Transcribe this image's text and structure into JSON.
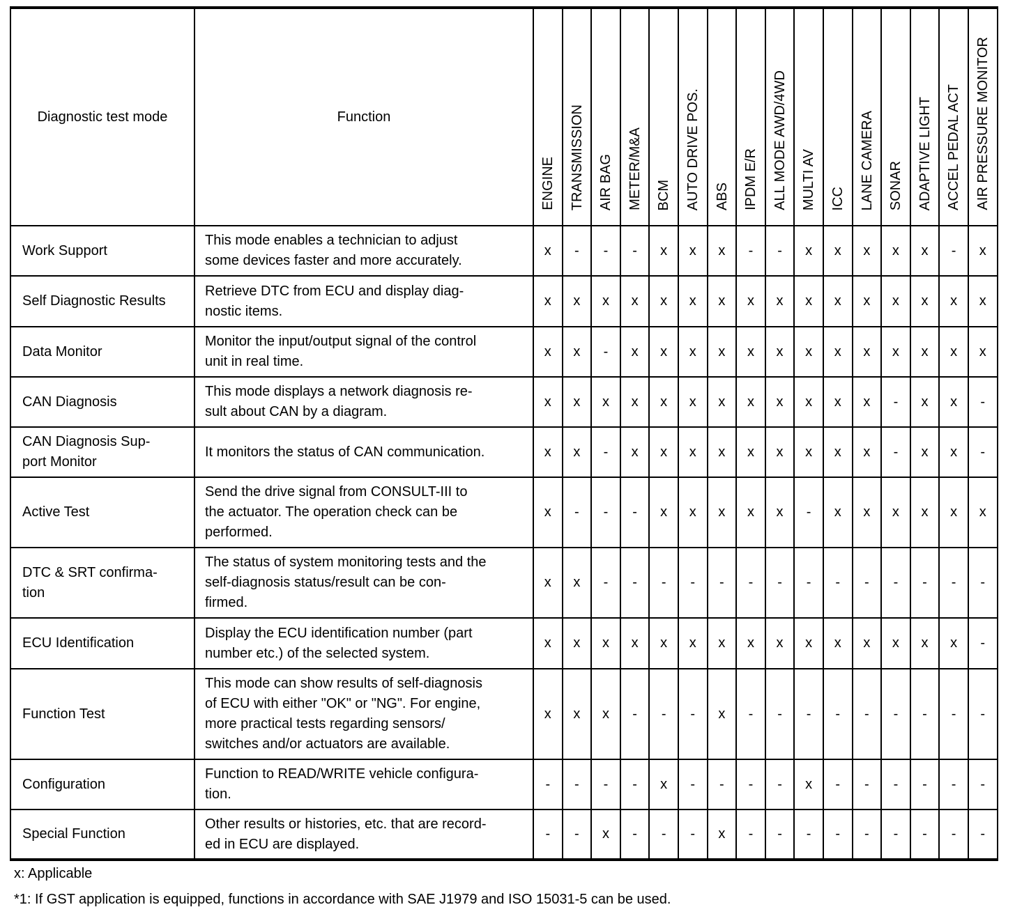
{
  "header": {
    "mode_label": "Diagnostic test mode",
    "function_label": "Function",
    "systems": [
      "ENGINE",
      "TRANSMISSION",
      "AIR BAG",
      "METER/M&A",
      "BCM",
      "AUTO DRIVE POS.",
      "ABS",
      "IPDM E/R",
      "ALL MODE AWD/4WD",
      "MULTI AV",
      "ICC",
      "LANE CAMERA",
      "SONAR",
      "ADAPTIVE LIGHT",
      "ACCEL PEDAL ACT",
      "AIR PRESSURE MONITOR"
    ]
  },
  "rows": [
    {
      "mode": "Work Support",
      "function": "This mode enables a technician to adjust\nsome devices faster and more accurately.",
      "marks": [
        "x",
        "-",
        "-",
        "-",
        "x",
        "x",
        "x",
        "-",
        "-",
        "x",
        "x",
        "x",
        "x",
        "x",
        "-",
        "x"
      ]
    },
    {
      "mode": "Self Diagnostic Results",
      "function": "Retrieve DTC from ECU and display diag-\nnostic items.",
      "marks": [
        "x",
        "x",
        "x",
        "x",
        "x",
        "x",
        "x",
        "x",
        "x",
        "x",
        "x",
        "x",
        "x",
        "x",
        "x",
        "x"
      ]
    },
    {
      "mode": "Data Monitor",
      "function": "Monitor the input/output signal of the control\nunit in real time.",
      "marks": [
        "x",
        "x",
        "-",
        "x",
        "x",
        "x",
        "x",
        "x",
        "x",
        "x",
        "x",
        "x",
        "x",
        "x",
        "x",
        "x"
      ]
    },
    {
      "mode": "CAN Diagnosis",
      "function": "This mode displays a network diagnosis re-\nsult about CAN by a diagram.",
      "marks": [
        "x",
        "x",
        "x",
        "x",
        "x",
        "x",
        "x",
        "x",
        "x",
        "x",
        "x",
        "x",
        "-",
        "x",
        "x",
        "-"
      ]
    },
    {
      "mode": "CAN Diagnosis Sup-\nport Monitor",
      "function": "It monitors the status of CAN communication.",
      "marks": [
        "x",
        "x",
        "-",
        "x",
        "x",
        "x",
        "x",
        "x",
        "x",
        "x",
        "x",
        "x",
        "-",
        "x",
        "x",
        "-"
      ]
    },
    {
      "mode": "Active Test",
      "function": "Send the drive signal from CONSULT-III to\nthe actuator. The operation check can be\nperformed.",
      "marks": [
        "x",
        "-",
        "-",
        "-",
        "x",
        "x",
        "x",
        "x",
        "x",
        "-",
        "x",
        "x",
        "x",
        "x",
        "x",
        "x"
      ]
    },
    {
      "mode": "DTC & SRT confirma-\ntion",
      "function": "The status of system monitoring tests and the\nself-diagnosis status/result can be con-\nfirmed.",
      "marks": [
        "x",
        "x",
        "-",
        "-",
        "-",
        "-",
        "-",
        "-",
        "-",
        "-",
        "-",
        "-",
        "-",
        "-",
        "-",
        "-"
      ]
    },
    {
      "mode": "ECU Identification",
      "function": "Display the ECU identification number (part\nnumber etc.) of the selected system.",
      "marks": [
        "x",
        "x",
        "x",
        "x",
        "x",
        "x",
        "x",
        "x",
        "x",
        "x",
        "x",
        "x",
        "x",
        "x",
        "x",
        "-"
      ]
    },
    {
      "mode": "Function Test",
      "function": "This mode can show results of self-diagnosis\nof ECU with either \"OK\" or \"NG\". For engine,\nmore practical tests regarding sensors/\nswitches and/or actuators are available.",
      "marks": [
        "x",
        "x",
        "x",
        "-",
        "-",
        "-",
        "x",
        "-",
        "-",
        "-",
        "-",
        "-",
        "-",
        "-",
        "-",
        "-"
      ]
    },
    {
      "mode": "Configuration",
      "function": "Function to READ/WRITE vehicle configura-\ntion.",
      "marks": [
        "-",
        "-",
        "-",
        "-",
        "x",
        "-",
        "-",
        "-",
        "-",
        "x",
        "-",
        "-",
        "-",
        "-",
        "-",
        "-"
      ]
    },
    {
      "mode": "Special Function",
      "function": "Other results or histories, etc. that are record-\ned in ECU are displayed.",
      "marks": [
        "-",
        "-",
        "x",
        "-",
        "-",
        "-",
        "x",
        "-",
        "-",
        "-",
        "-",
        "-",
        "-",
        "-",
        "-",
        "-"
      ]
    }
  ],
  "notes": {
    "legend": "x: Applicable",
    "footnote": "*1: If GST application is equipped, functions in accordance with SAE J1979 and ISO 15031-5 can be used."
  }
}
